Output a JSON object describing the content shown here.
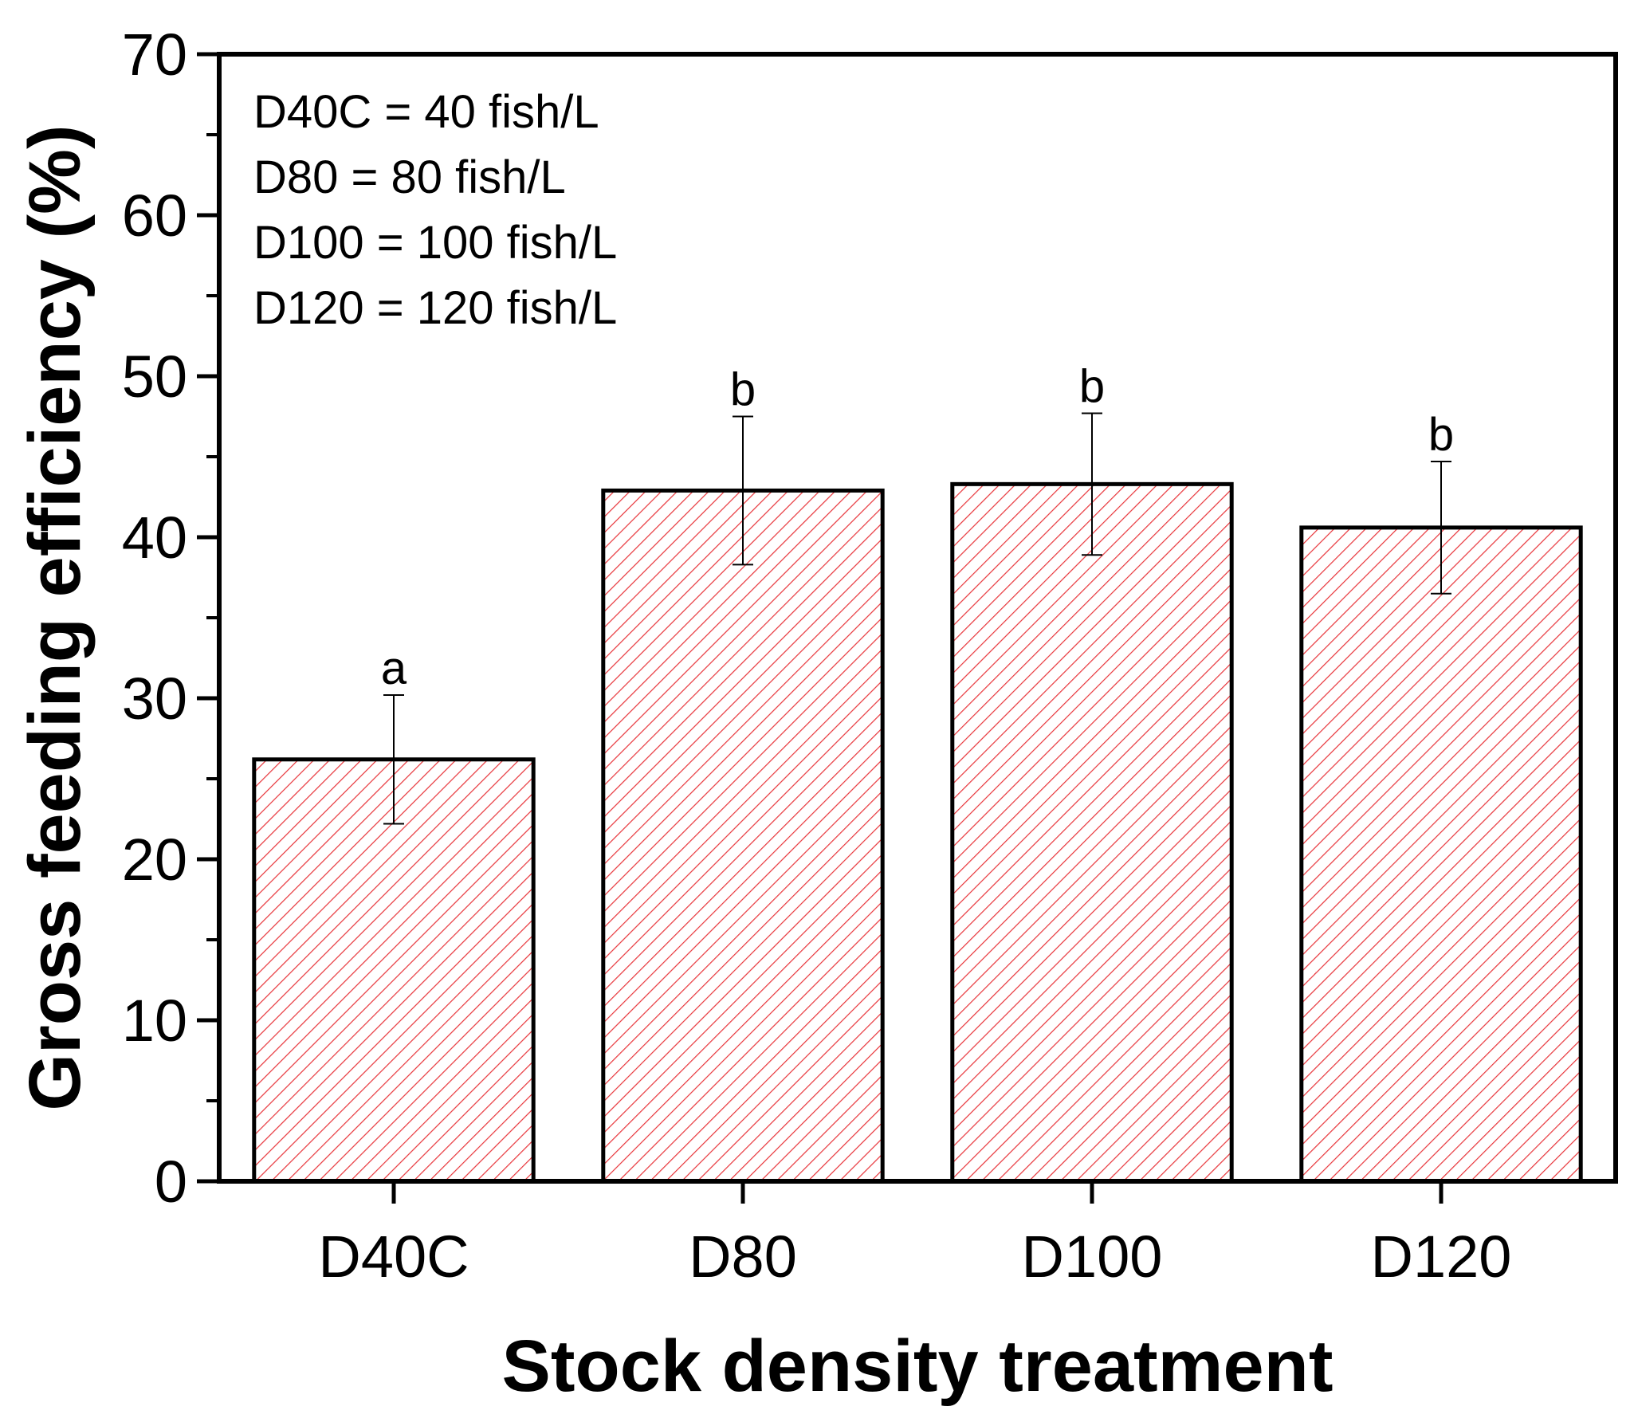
{
  "chart_data": {
    "type": "bar",
    "title": "",
    "xlabel": "Stock density treatment",
    "ylabel": "Gross feeding efficiency (%)",
    "ylim": [
      0,
      70
    ],
    "yticks": [
      0,
      10,
      20,
      30,
      40,
      50,
      60,
      70
    ],
    "categories": [
      "D40C",
      "D80",
      "D100",
      "D120"
    ],
    "values": [
      26.2,
      42.9,
      43.3,
      40.6
    ],
    "errors": [
      4.0,
      4.6,
      4.4,
      4.1
    ],
    "significance": [
      "a",
      "b",
      "b",
      "b"
    ],
    "legend": [
      "D40C = 40 fish/L",
      "D80 = 80 fish/L",
      "D100 = 100 fish/L",
      "D120 = 120 fish/L"
    ],
    "bar_fill": "hatched",
    "hatch_color": "#e8343a",
    "grid": false
  }
}
